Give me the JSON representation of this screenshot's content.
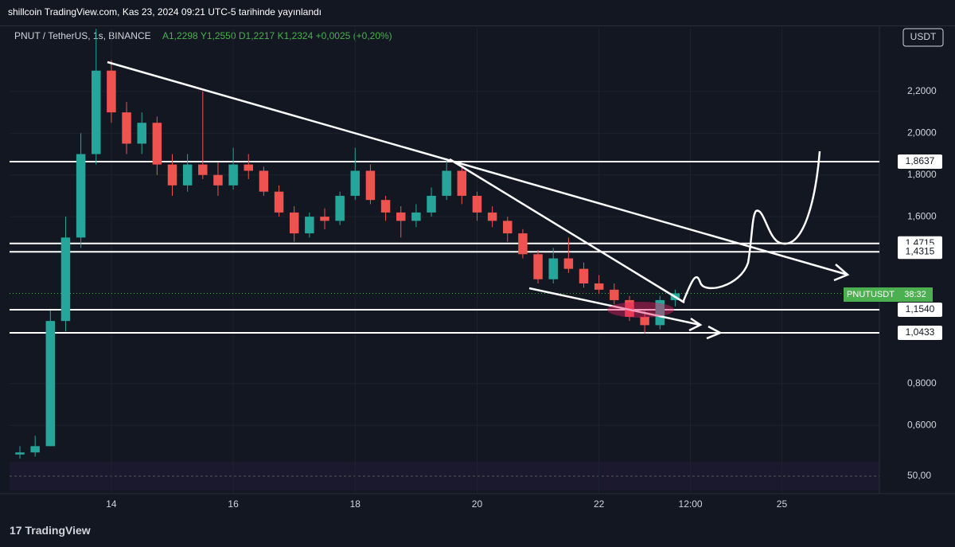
{
  "header": {
    "title": "shillcoin TradingView.com, Kas 23, 2024 09:21 UTC-5 tarihinde yayınlandı"
  },
  "legend": {
    "symbol": "PNUT / TetherUS, 1s, BINANCE",
    "ohlc": "A1,2298  Y1,2550  D1,2217  K1,2324  +0,0025 (+0,20%)"
  },
  "currency_button": "USDT",
  "price_tag": {
    "symbol": "PNUTUSDT",
    "countdown": "38:32"
  },
  "rsi_label": "50,00",
  "footer": {
    "logo": "TradingView"
  },
  "chart_data": {
    "type": "candlestick",
    "x": [
      12.5,
      12.75,
      13,
      13.25,
      13.5,
      13.75,
      14,
      14.25,
      14.5,
      14.75,
      15,
      15.25,
      15.5,
      15.75,
      16,
      16.25,
      16.5,
      16.75,
      17,
      17.25,
      17.5,
      17.75,
      18,
      18.25,
      18.5,
      18.75,
      19,
      19.25,
      19.5,
      19.75,
      20,
      20.25,
      20.5,
      20.75,
      21,
      21.25,
      21.5,
      21.75,
      22,
      22.25,
      22.5,
      22.75,
      23,
      23.25
    ],
    "open": [
      0.46,
      0.47,
      0.5,
      1.1,
      1.5,
      1.9,
      2.3,
      2.1,
      1.95,
      2.05,
      1.85,
      1.75,
      1.85,
      1.8,
      1.75,
      1.85,
      1.82,
      1.72,
      1.62,
      1.52,
      1.6,
      1.58,
      1.7,
      1.82,
      1.68,
      1.62,
      1.58,
      1.62,
      1.7,
      1.82,
      1.7,
      1.62,
      1.58,
      1.52,
      1.42,
      1.3,
      1.4,
      1.35,
      1.28,
      1.25,
      1.2,
      1.12,
      1.08,
      1.2
    ],
    "high": [
      0.5,
      0.55,
      1.15,
      1.6,
      2.0,
      2.5,
      2.35,
      2.15,
      2.1,
      2.08,
      1.9,
      1.9,
      2.2,
      1.86,
      1.93,
      1.9,
      1.84,
      1.75,
      1.65,
      1.62,
      1.64,
      1.72,
      1.93,
      1.85,
      1.7,
      1.65,
      1.66,
      1.74,
      1.88,
      1.84,
      1.72,
      1.65,
      1.6,
      1.54,
      1.44,
      1.45,
      1.5,
      1.38,
      1.32,
      1.28,
      1.22,
      1.15,
      1.22,
      1.25
    ],
    "low": [
      0.44,
      0.45,
      0.5,
      1.05,
      1.45,
      1.85,
      2.05,
      1.9,
      1.9,
      1.8,
      1.7,
      1.72,
      1.78,
      1.7,
      1.73,
      1.78,
      1.7,
      1.6,
      1.48,
      1.5,
      1.54,
      1.56,
      1.68,
      1.66,
      1.58,
      1.5,
      1.55,
      1.6,
      1.68,
      1.66,
      1.58,
      1.55,
      1.48,
      1.4,
      1.28,
      1.28,
      1.33,
      1.26,
      1.23,
      1.18,
      1.1,
      1.04,
      1.06,
      1.17
    ],
    "close": [
      0.47,
      0.5,
      1.1,
      1.5,
      1.9,
      2.3,
      2.1,
      1.95,
      2.05,
      1.85,
      1.75,
      1.85,
      1.8,
      1.75,
      1.85,
      1.82,
      1.72,
      1.62,
      1.52,
      1.6,
      1.58,
      1.7,
      1.82,
      1.68,
      1.62,
      1.58,
      1.62,
      1.7,
      1.82,
      1.7,
      1.62,
      1.58,
      1.52,
      1.42,
      1.3,
      1.4,
      1.35,
      1.28,
      1.25,
      1.2,
      1.12,
      1.08,
      1.2,
      1.2324
    ],
    "up_color": "#26a69a",
    "down_color": "#ef5350",
    "xlim": [
      12.33,
      26.6
    ],
    "ylim": [
      0.425,
      2.505
    ],
    "xticks": [
      14,
      16,
      18,
      20,
      22,
      {
        "value": 23.5,
        "label": "12:00"
      },
      25
    ],
    "yticks": [
      {
        "value": 2.2,
        "label": "2,2000"
      },
      {
        "value": 2.0,
        "label": "2,0000"
      },
      {
        "value": 1.8,
        "label": "1,8000"
      },
      {
        "value": 1.6,
        "label": "1,6000"
      },
      {
        "value": 0.8,
        "label": "0,8000"
      },
      {
        "value": 0.6,
        "label": "0,6000"
      }
    ],
    "levels": [
      {
        "value": 1.8637,
        "label": "1,8637"
      },
      {
        "value": 1.4715,
        "label": "1,4715"
      },
      {
        "value": 1.4315,
        "label": "1,4315"
      },
      {
        "value": 1.154,
        "label": "1,1540"
      },
      {
        "value": 1.0433,
        "label": "1,0433"
      }
    ],
    "last_price": 1.2324
  }
}
